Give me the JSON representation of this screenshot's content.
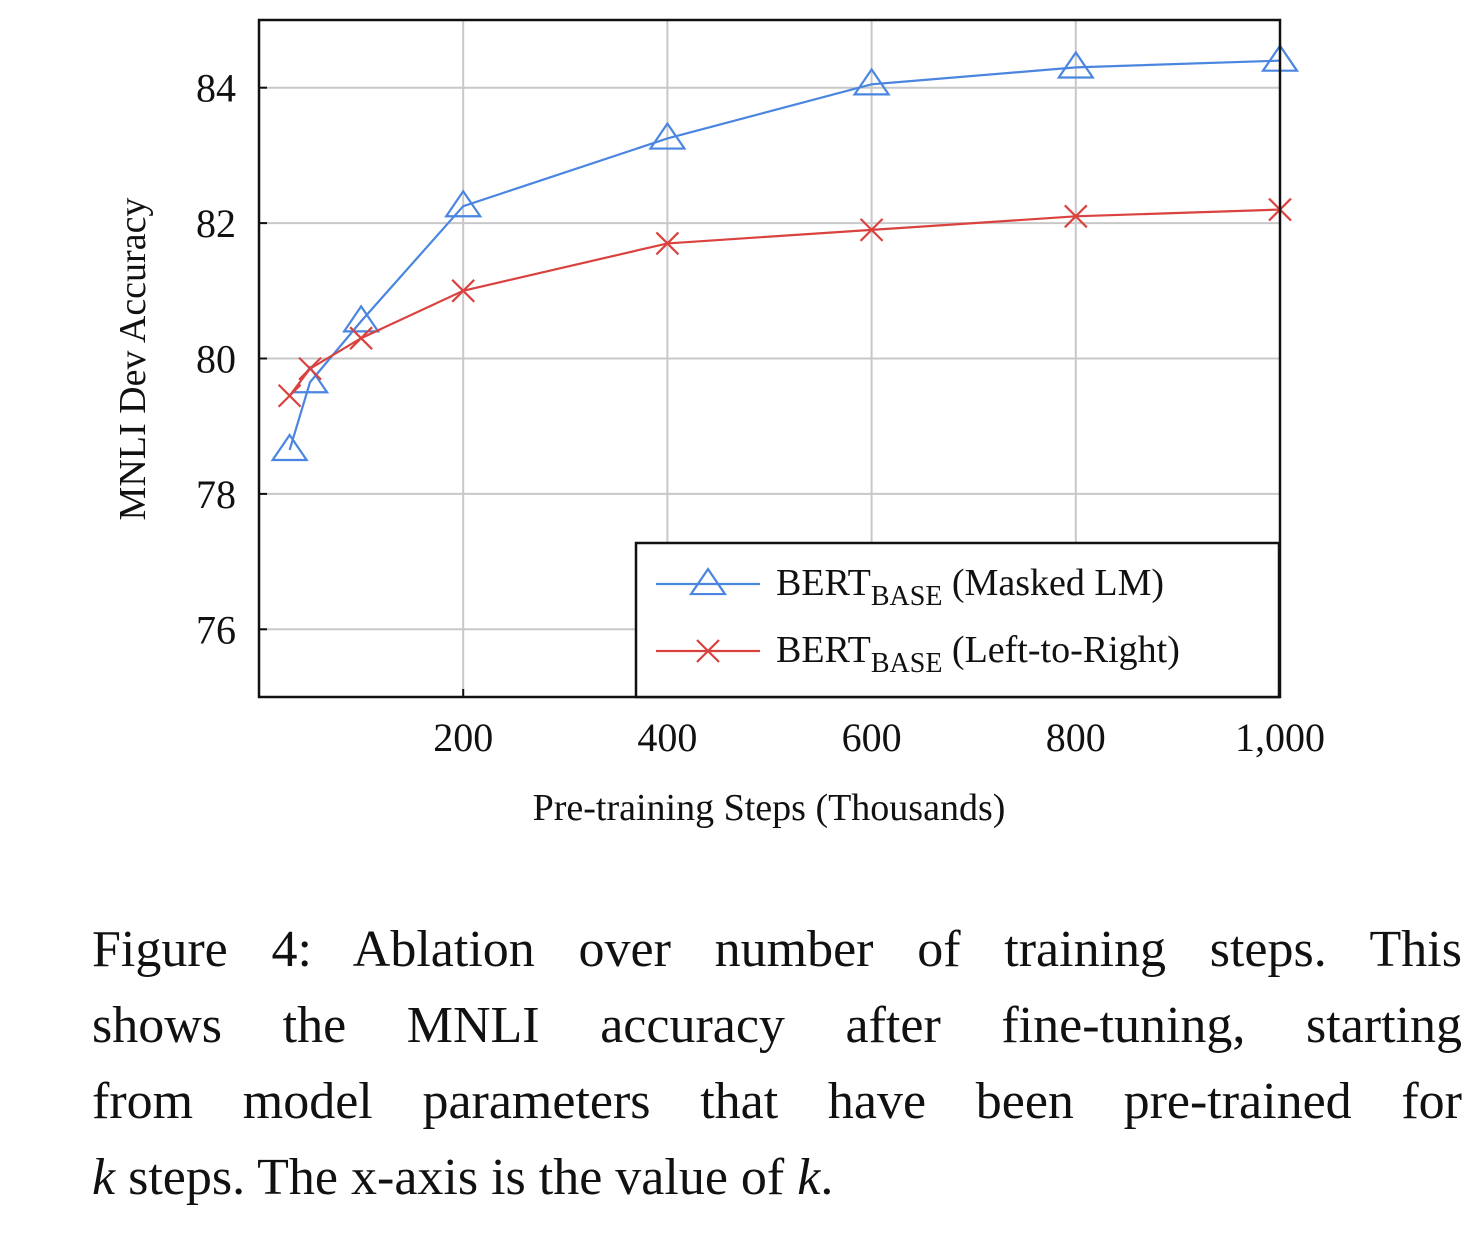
{
  "chart_data": {
    "type": "line",
    "xlabel": "Pre-training Steps (Thousands)",
    "ylabel": "MNLI Dev Accuracy",
    "xlim": [
      0,
      1000
    ],
    "ylim": [
      75,
      85
    ],
    "xticks": [
      200,
      400,
      600,
      800,
      1000
    ],
    "xtick_labels": [
      "200",
      "400",
      "600",
      "800",
      "1,000"
    ],
    "yticks": [
      76,
      78,
      80,
      82,
      84
    ],
    "ytick_labels": [
      "76",
      "78",
      "80",
      "82",
      "84"
    ],
    "grid": true,
    "legend_position": "bottom-right",
    "series": [
      {
        "name": "BERTBASE (Masked LM)",
        "legend_main": "BERT",
        "legend_sub": "BASE",
        "legend_suffix": " (Masked LM)",
        "marker": "triangle",
        "color": "#4a86e0",
        "x": [
          30,
          50,
          100,
          200,
          400,
          600,
          800,
          1000
        ],
        "y": [
          78.65,
          79.65,
          80.55,
          82.25,
          83.25,
          84.05,
          84.3,
          84.4
        ]
      },
      {
        "name": "BERTBASE (Left-to-Right)",
        "legend_main": "BERT",
        "legend_sub": "BASE",
        "legend_suffix": " (Left-to-Right)",
        "marker": "cross",
        "color": "#d9423f",
        "x": [
          30,
          50,
          100,
          200,
          400,
          600,
          800,
          1000
        ],
        "y": [
          79.45,
          79.85,
          80.3,
          81.0,
          81.7,
          81.9,
          82.1,
          82.2
        ]
      }
    ]
  },
  "caption": {
    "line1": "Figure 4: Ablation over number of training steps. This",
    "line2": "shows the MNLI accuracy after fine-tuning, starting",
    "line3": "from model parameters that have been pre-trained for",
    "line4_var": "k",
    "line4_mid": " steps. The x-axis is the value of ",
    "line4_var2": "k",
    "line4_end": "."
  }
}
